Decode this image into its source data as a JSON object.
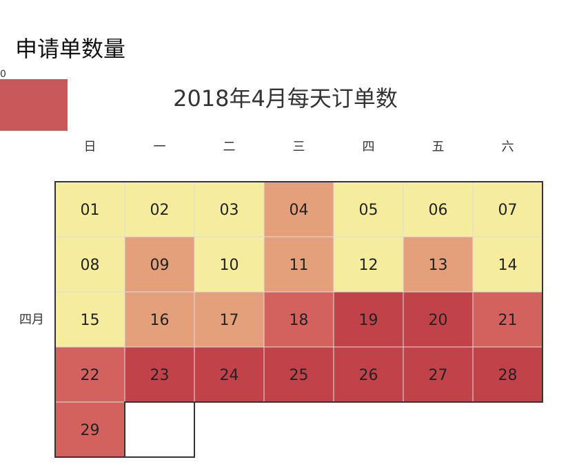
{
  "header": {
    "title": "申请单数量"
  },
  "legend": {
    "min_label": "0",
    "color": "#c8585a"
  },
  "chart_data": {
    "type": "heatmap",
    "layout": "calendar",
    "title": "2018年4月每天订单数",
    "month_label": "四月",
    "weekday_labels": [
      "日",
      "一",
      "二",
      "三",
      "四",
      "五",
      "六"
    ],
    "first_weekday_index": 0,
    "days_in_month": 29,
    "levels": [
      "low",
      "mid",
      "high",
      "top"
    ],
    "colors": {
      "low": "#f5ec9e",
      "mid": "#e4a07b",
      "high": "#d3625f",
      "top": "#c2424a"
    },
    "days": [
      {
        "day": "01",
        "level": "low"
      },
      {
        "day": "02",
        "level": "low"
      },
      {
        "day": "03",
        "level": "low"
      },
      {
        "day": "04",
        "level": "mid"
      },
      {
        "day": "05",
        "level": "low"
      },
      {
        "day": "06",
        "level": "low"
      },
      {
        "day": "07",
        "level": "low"
      },
      {
        "day": "08",
        "level": "low"
      },
      {
        "day": "09",
        "level": "mid"
      },
      {
        "day": "10",
        "level": "low"
      },
      {
        "day": "11",
        "level": "mid"
      },
      {
        "day": "12",
        "level": "low"
      },
      {
        "day": "13",
        "level": "mid"
      },
      {
        "day": "14",
        "level": "low"
      },
      {
        "day": "15",
        "level": "low"
      },
      {
        "day": "16",
        "level": "mid"
      },
      {
        "day": "17",
        "level": "mid"
      },
      {
        "day": "18",
        "level": "high"
      },
      {
        "day": "19",
        "level": "top"
      },
      {
        "day": "20",
        "level": "top"
      },
      {
        "day": "21",
        "level": "high"
      },
      {
        "day": "22",
        "level": "high"
      },
      {
        "day": "23",
        "level": "top"
      },
      {
        "day": "24",
        "level": "top"
      },
      {
        "day": "25",
        "level": "top"
      },
      {
        "day": "26",
        "level": "top"
      },
      {
        "day": "27",
        "level": "top"
      },
      {
        "day": "28",
        "level": "top"
      },
      {
        "day": "29",
        "level": "high"
      }
    ]
  }
}
